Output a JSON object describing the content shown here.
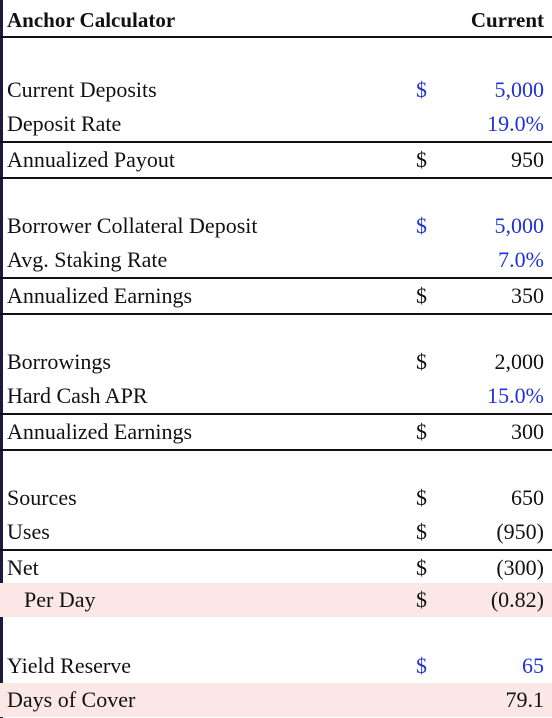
{
  "header": {
    "title": "Anchor Calculator",
    "column": "Current"
  },
  "rows": [
    {
      "label": "Current Deposits",
      "cur": "$",
      "value": "5,000",
      "cur_blue": true,
      "value_blue": true
    },
    {
      "label": "Deposit Rate",
      "cur": "",
      "value": "19.0%",
      "value_blue": true
    },
    {
      "label": "Annualized Payout",
      "cur": "$",
      "value": "950"
    },
    {
      "label": "Borrower Collateral Deposit",
      "cur": "$",
      "value": "5,000",
      "cur_blue": true,
      "value_blue": true
    },
    {
      "label": "Avg. Staking Rate",
      "cur": "",
      "value": "7.0%",
      "value_blue": true
    },
    {
      "label": "Annualized Earnings",
      "cur": "$",
      "value": "350"
    },
    {
      "label": "Borrowings",
      "cur": "$",
      "value": "2,000"
    },
    {
      "label": "Hard Cash APR",
      "cur": "",
      "value": "15.0%",
      "value_blue": true
    },
    {
      "label": "Annualized Earnings",
      "cur": "$",
      "value": "300"
    },
    {
      "label": "Sources",
      "cur": "$",
      "value": "650"
    },
    {
      "label": "Uses",
      "cur": "$",
      "value": "(950)"
    },
    {
      "label": "Net",
      "cur": "$",
      "value": "(300)"
    },
    {
      "label": "Per Day",
      "cur": "$",
      "value": "(0.82)"
    },
    {
      "label": "Yield Reserve",
      "cur": "$",
      "value": "65",
      "cur_blue": true,
      "value_blue": true
    },
    {
      "label": "Days of Cover",
      "cur": "",
      "value": "79.1"
    }
  ]
}
